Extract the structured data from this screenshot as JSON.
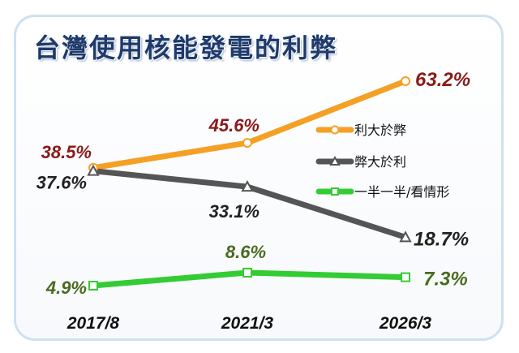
{
  "chart_data": {
    "type": "line",
    "title": "台灣使用核能發電的利弊",
    "categories": [
      "2017/8",
      "2021/3",
      "2026/3"
    ],
    "series": [
      {
        "name": "利大於弊",
        "values": [
          38.5,
          45.6,
          63.2
        ],
        "labels": [
          "38.5%",
          "45.6%",
          "63.2%"
        ],
        "color": "#f4a024",
        "label_color": "#8b1a1a",
        "marker": "circle"
      },
      {
        "name": "弊大於利",
        "values": [
          37.6,
          33.1,
          18.7
        ],
        "labels": [
          "37.6%",
          "33.1%",
          "18.7%"
        ],
        "color": "#555555",
        "label_color": "#222222",
        "marker": "triangle"
      },
      {
        "name": "一半一半/看情形",
        "values": [
          4.9,
          8.6,
          7.3
        ],
        "labels": [
          "4.9%",
          "8.6%",
          "7.3%"
        ],
        "color": "#33cc33",
        "label_color": "#4a6b1f",
        "marker": "square"
      }
    ],
    "xlabel": "",
    "ylabel": "",
    "grid": false,
    "legend_position": "right-middle"
  }
}
